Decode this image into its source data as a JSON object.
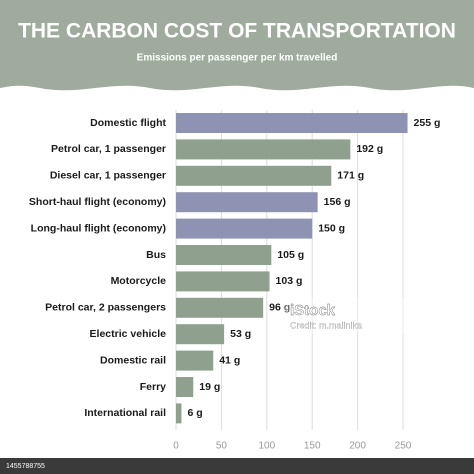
{
  "chart_data": {
    "type": "hbar",
    "title": "THE CARBON COST OF TRANSPORTATION",
    "subtitle": "Emissions per passenger per km travelled",
    "categories": [
      "Domestic flight",
      "Petrol car, 1 passenger",
      "Diesel car, 1 passenger",
      "Short-haul flight (economy)",
      "Long-haul flight (economy)",
      "Bus",
      "Motorcycle",
      "Petrol car, 2 passengers",
      "Electric vehicle",
      "Domestic rail",
      "Ferry",
      "International rail"
    ],
    "values": [
      255,
      192,
      171,
      156,
      150,
      105,
      103,
      96,
      53,
      41,
      19,
      6
    ],
    "value_labels": [
      "255 g",
      "192 g",
      "171 g",
      "156 g",
      "150 g",
      "105 g",
      "103 g",
      "96 g",
      "53 g",
      "41 g",
      "19 g",
      "6 g"
    ],
    "colors": [
      "#8e92b3",
      "#8fa08f",
      "#8fa08f",
      "#8e92b3",
      "#8e92b3",
      "#8fa08f",
      "#8fa08f",
      "#8fa08f",
      "#8fa08f",
      "#8fa08f",
      "#8fa08f",
      "#8fa08f"
    ],
    "xlim": [
      0,
      250
    ],
    "xticks": [
      0,
      50,
      100,
      150,
      200,
      250
    ],
    "grid": true,
    "watermark": "iStock",
    "credit": "Credit: m.malinika",
    "image_id": "1455788755"
  }
}
